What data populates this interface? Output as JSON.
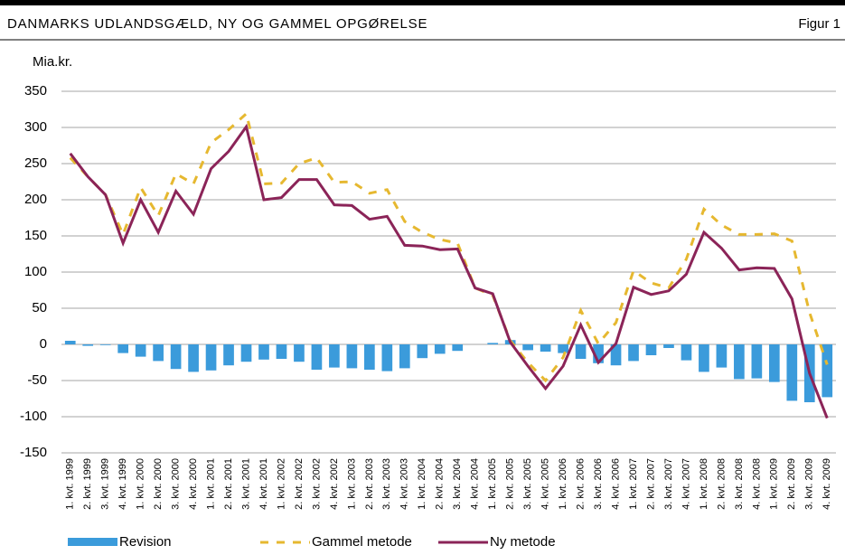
{
  "chart_data": {
    "type": "combo",
    "title": "DANMARKS UDLANDSGÆLD, NY OG GAMMEL OPGØRELSE",
    "figure_label": "Figur 1",
    "y_label": "Mia.kr.",
    "categories": [
      "1. kvt. 1999",
      "2. kvt. 1999",
      "3. kvt. 1999",
      "4. kvt. 1999",
      "1. kvt. 2000",
      "2. kvt. 2000",
      "3. kvt. 2000",
      "4. kvt. 2000",
      "1. kvt. 2001",
      "2. kvt. 2001",
      "3. kvt. 2001",
      "4. kvt. 2001",
      "1. kvt. 2002",
      "2. kvt. 2002",
      "3. kvt. 2002",
      "4. kvt. 2002",
      "1. kvt. 2003",
      "2. kvt. 2003",
      "3. kvt. 2003",
      "4. kvt. 2003",
      "1. kvt. 2004",
      "2. kvt. 2004",
      "3. kvt. 2004",
      "4. kvt. 2004",
      "1. kvt. 2005",
      "2. kvt. 2005",
      "3. kvt. 2005",
      "4. kvt. 2005",
      "1. kvt. 2006",
      "2. kvt. 2006",
      "3. kvt. 2006",
      "4. kvt. 2006",
      "1. kvt. 2007",
      "2. kvt. 2007",
      "3. kvt. 2007",
      "4. kvt. 2007",
      "1. kvt. 2008",
      "2. kvt. 2008",
      "3. kvt. 2008",
      "4. kvt. 2008",
      "1. kvt. 2009",
      "2. kvt. 2009",
      "3. kvt. 2009",
      "4. kvt. 2009"
    ],
    "series": [
      {
        "name": "Revision",
        "type": "bar",
        "color": "#3b9bdb",
        "values": [
          5,
          -2,
          -1,
          -12,
          -17,
          -23,
          -34,
          -38,
          -36,
          -29,
          -24,
          -21,
          -20,
          -24,
          -35,
          -32,
          -33,
          -35,
          -37,
          -33,
          -19,
          -13,
          -9,
          0,
          2,
          6,
          -8,
          -10,
          -12,
          -20,
          -26,
          -29,
          -23,
          -15,
          -5,
          -22,
          -38,
          -32,
          -48,
          -47,
          -52,
          -78,
          -80,
          -73
        ]
      },
      {
        "name": "Gammel metode",
        "type": "line",
        "style": "dashed",
        "color": "#e6b830",
        "values": [
          258,
          232,
          207,
          152,
          217,
          178,
          236,
          222,
          279,
          297,
          319,
          222,
          223,
          250,
          258,
          224,
          225,
          209,
          214,
          170,
          155,
          145,
          140,
          78,
          68,
          5,
          -25,
          -50,
          -18,
          47,
          1,
          30,
          102,
          85,
          78,
          118,
          187,
          165,
          152,
          152,
          153,
          143,
          44,
          -28
        ]
      },
      {
        "name": "Ny metode",
        "type": "line",
        "style": "solid",
        "color": "#8b2458",
        "values": [
          264,
          232,
          207,
          140,
          200,
          155,
          212,
          180,
          243,
          267,
          301,
          200,
          203,
          228,
          228,
          193,
          192,
          173,
          177,
          137,
          136,
          131,
          132,
          78,
          70,
          3,
          -30,
          -61,
          -30,
          27,
          -25,
          1,
          79,
          69,
          74,
          97,
          155,
          133,
          103,
          106,
          105,
          63,
          -40,
          -102
        ]
      }
    ],
    "ylim": [
      -150,
      350
    ],
    "yticks": [
      -150,
      -100,
      -50,
      0,
      50,
      100,
      150,
      200,
      250,
      300,
      350
    ],
    "grid": true
  }
}
